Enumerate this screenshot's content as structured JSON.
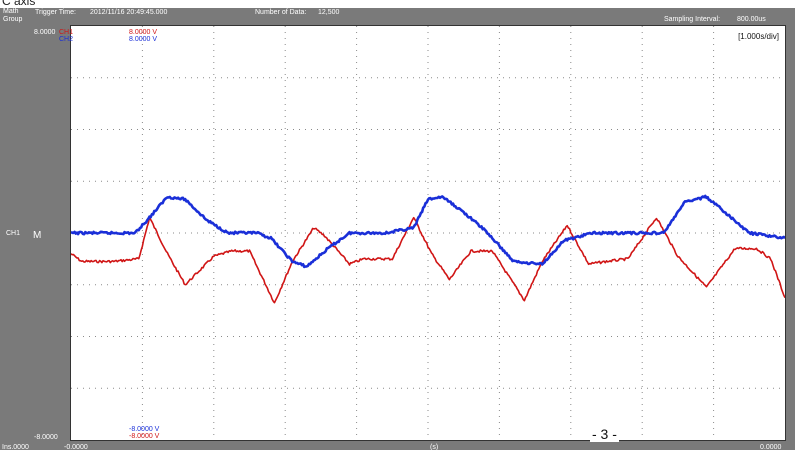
{
  "caption": "C axis",
  "header": {
    "group_label": "Math\nGroup",
    "trigger_label": "Trigger Time:",
    "trigger_time": "2012/11/16 20:49:45.000",
    "data_count_label": "Number of Data:",
    "data_count": "12,500",
    "sampling_label": "Sampling Interval:",
    "sampling_value": "800.00us"
  },
  "axis": {
    "y_top": "8.0000",
    "y_bottom": "-8.0000",
    "x_left_outer": "Ins.0000",
    "x_left": "-0.0000",
    "x_right": "0.0000",
    "x_mid": "(s)"
  },
  "channels": {
    "ch1_name": "CH1",
    "ch2_name": "CH2",
    "ch1_top": "8.0000 V",
    "ch2_top": "8.0000 V",
    "ch1_bottom": "-8.0000 V",
    "ch2_bottom": "-8.0000 V",
    "marker_left": "CH1",
    "marker_letter": "M"
  },
  "timebase": "[1.000s/div]",
  "page_number": "- 3 -",
  "colors": {
    "ch1": "#d01515",
    "ch2": "#1a2fd8",
    "frame": "#7a7a7a",
    "grid": "#8a8a8a"
  },
  "chart_data": {
    "type": "line",
    "xlim": [
      0,
      10
    ],
    "ylim": [
      -8,
      8
    ],
    "grid": true,
    "series": [
      {
        "name": "CH1",
        "color": "#d01515",
        "x": [
          0,
          0.15,
          0.6,
          0.95,
          1.1,
          1.35,
          1.6,
          2.0,
          2.25,
          2.5,
          2.85,
          3.1,
          3.4,
          3.55,
          3.9,
          4.1,
          4.5,
          4.8,
          5.05,
          5.3,
          5.6,
          5.9,
          6.35,
          6.6,
          6.95,
          7.25,
          7.5,
          7.8,
          8.2,
          8.5,
          8.9,
          9.3,
          9.6,
          9.8,
          10
        ],
        "y": [
          -0.8,
          -1.1,
          -1.1,
          -1.0,
          0.6,
          -0.8,
          -2.0,
          -0.9,
          -0.7,
          -0.7,
          -2.7,
          -1.1,
          0.2,
          -0.1,
          -1.2,
          -1.0,
          -1.0,
          0.6,
          -0.8,
          -1.8,
          -0.7,
          -0.7,
          -2.6,
          -1.1,
          0.3,
          -1.2,
          -1.1,
          -1.0,
          0.6,
          -0.9,
          -2.1,
          -0.6,
          -0.6,
          -1.0,
          -2.5
        ]
      },
      {
        "name": "CH2",
        "color": "#1a2fd8",
        "x": [
          0,
          0.9,
          1.1,
          1.35,
          1.6,
          1.9,
          2.2,
          2.6,
          2.8,
          3.1,
          3.3,
          3.6,
          3.9,
          4.4,
          4.8,
          5.0,
          5.2,
          5.5,
          5.8,
          6.2,
          6.6,
          6.9,
          7.3,
          8.3,
          8.6,
          8.9,
          9.2,
          9.5,
          10
        ],
        "y": [
          0,
          0,
          0.6,
          1.4,
          1.3,
          0.5,
          0,
          0,
          -0.2,
          -1.1,
          -1.3,
          -0.6,
          0,
          0,
          0.2,
          1.3,
          1.4,
          0.8,
          0.1,
          -1.1,
          -1.2,
          -0.3,
          0,
          0,
          1.2,
          1.4,
          0.7,
          0,
          -0.2
        ]
      }
    ]
  }
}
